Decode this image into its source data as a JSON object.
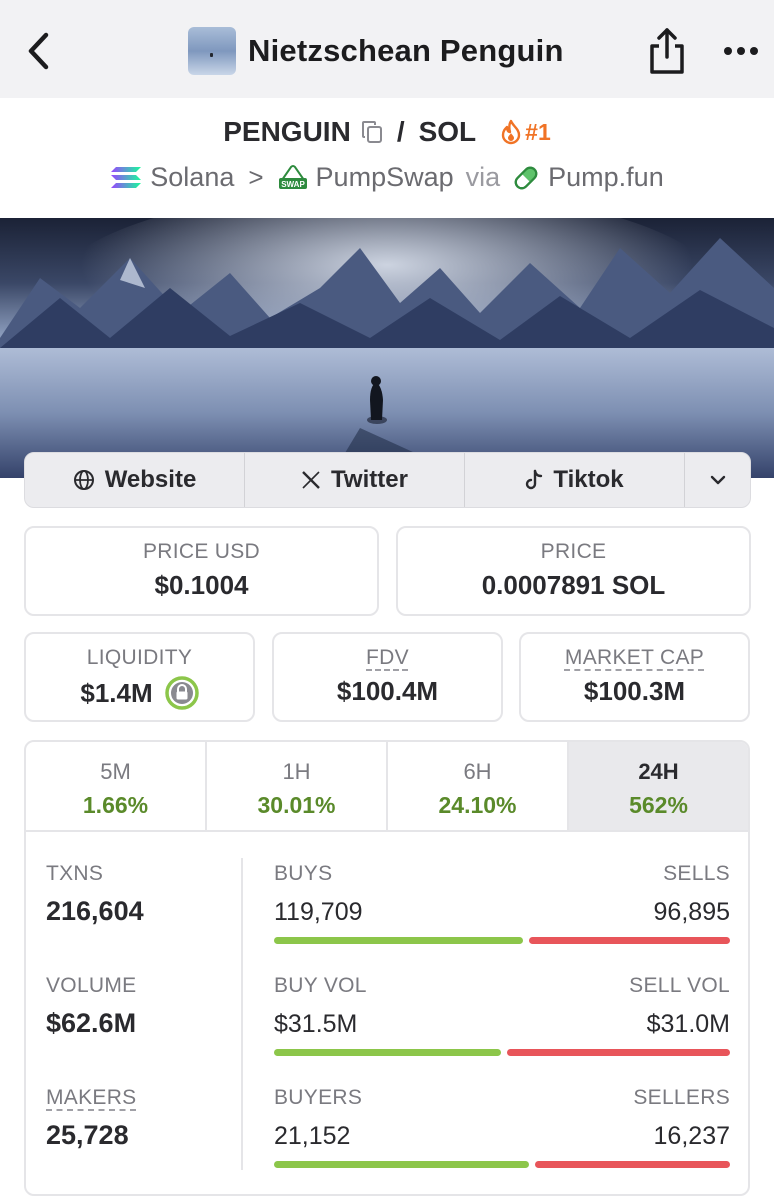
{
  "nav": {
    "title": "Nietzschean Penguin"
  },
  "pair": {
    "base": "PENGUIN",
    "slash": "/",
    "quote": "SOL",
    "rank": "#1"
  },
  "chain": {
    "network": "Solana",
    "separator": ">",
    "dex": "PumpSwap",
    "via": "via",
    "launchpad": "Pump.fun"
  },
  "links": [
    {
      "label": "Website",
      "icon": "globe-icon"
    },
    {
      "label": "Twitter",
      "icon": "x-logo-icon"
    },
    {
      "label": "Tiktok",
      "icon": "tiktok-icon"
    }
  ],
  "prices": {
    "price_usd_label": "PRICE USD",
    "price_usd": "$0.1004",
    "price_label": "PRICE",
    "price_sol": "0.0007891 SOL"
  },
  "metrics": {
    "liquidity_label": "LIQUIDITY",
    "liquidity": "$1.4M",
    "fdv_label": "FDV",
    "fdv": "$100.4M",
    "mcap_label": "MARKET CAP",
    "mcap": "$100.3M"
  },
  "timeframes": [
    {
      "label": "5M",
      "change": "1.66%"
    },
    {
      "label": "1H",
      "change": "30.01%"
    },
    {
      "label": "6H",
      "change": "24.10%"
    },
    {
      "label": "24H",
      "change": "562%"
    }
  ],
  "active_timeframe": "24H",
  "stats": {
    "txns_label": "TXNS",
    "txns": "216,604",
    "volume_label": "VOLUME",
    "volume": "$62.6M",
    "makers_label": "MAKERS",
    "makers": "25,728",
    "buys_label": "BUYS",
    "buys": "119,709",
    "sells_label": "SELLS",
    "sells": "96,895",
    "buy_vol_label": "BUY VOL",
    "buy_vol": "$31.5M",
    "sell_vol_label": "SELL VOL",
    "sell_vol": "$31.0M",
    "buyers_label": "BUYERS",
    "buyers": "21,152",
    "sellers_label": "SELLERS",
    "sellers": "16,237"
  },
  "ratio_bars": {
    "buys_fraction": 0.553,
    "buy_vol_fraction": 0.504,
    "buyers_fraction": 0.566
  },
  "colors": {
    "positive": "#5a8a2a",
    "buy_bar": "#8cc64a",
    "sell_bar": "#e8555a",
    "rank": "#f07326"
  }
}
